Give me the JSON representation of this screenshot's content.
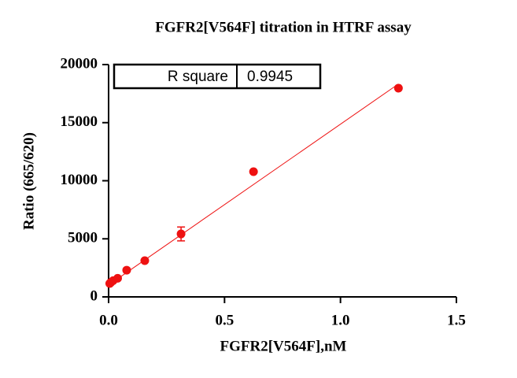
{
  "chart_data": {
    "type": "scatter",
    "title": "FGFR2[V564F] titration in HTRF assay",
    "x_label": "FGFR2[V564F],nM",
    "y_label": "Ratio (665/620)",
    "xlim": [
      0,
      1.5
    ],
    "ylim": [
      0,
      20000
    ],
    "xticks": [
      {
        "value": 0,
        "label": "0.0"
      },
      {
        "value": 0.5,
        "label": "0.5"
      },
      {
        "value": 1,
        "label": "1.0"
      },
      {
        "value": 1.5,
        "label": "1.5"
      }
    ],
    "yticks": [
      0,
      5000,
      10000,
      15000,
      20000
    ],
    "color": "#ee1111",
    "x": [
      0.0049,
      0.0098,
      0.0195,
      0.039,
      0.078,
      0.156,
      0.3125,
      0.625,
      1.25
    ],
    "values": [
      1150,
      1250,
      1400,
      1600,
      2300,
      3120,
      5420,
      10780,
      17970
    ],
    "errors": [
      null,
      null,
      null,
      null,
      null,
      null,
      600,
      null,
      null
    ],
    "fit": {
      "x": [
        0,
        1.25
      ],
      "y": [
        1020,
        18330
      ]
    },
    "annotation": {
      "label": "R square",
      "value": 0.9945
    }
  }
}
